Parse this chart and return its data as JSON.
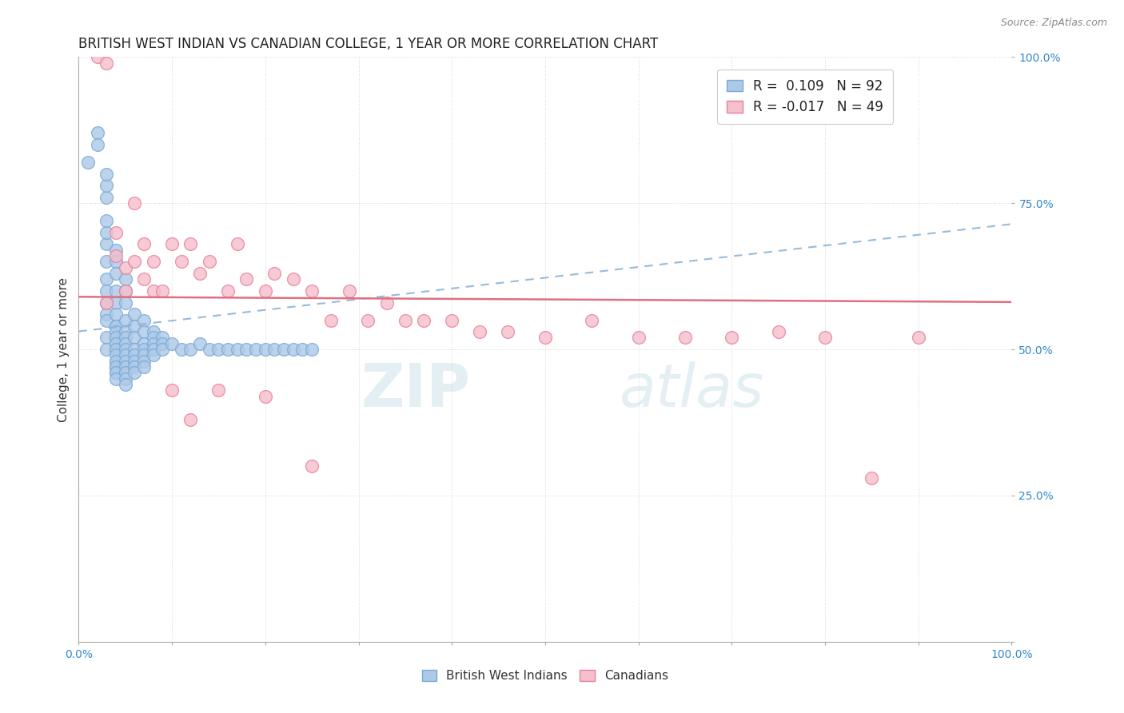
{
  "title": "BRITISH WEST INDIAN VS CANADIAN COLLEGE, 1 YEAR OR MORE CORRELATION CHART",
  "source": "Source: ZipAtlas.com",
  "ylabel": "College, 1 year or more",
  "watermark": "ZIPatlas",
  "xlim": [
    0.0,
    1.0
  ],
  "ylim": [
    0.0,
    1.0
  ],
  "xtick_positions": [
    0.0,
    0.1,
    0.2,
    0.3,
    0.4,
    0.5,
    0.6,
    0.7,
    0.8,
    0.9,
    1.0
  ],
  "ytick_positions": [
    0.0,
    0.25,
    0.5,
    0.75,
    1.0
  ],
  "blue_R": 0.109,
  "blue_N": 92,
  "pink_R": -0.017,
  "pink_N": 49,
  "blue_color": "#adc9e8",
  "blue_edge": "#7aaad4",
  "pink_color": "#f5bfcc",
  "pink_edge": "#e8809a",
  "blue_line_color": "#8ab4d8",
  "pink_line_color": "#e07080",
  "legend_blue_label": "R =  0.109   N = 92",
  "legend_pink_label": "R = -0.017   N = 49",
  "bottom_legend_blue": "British West Indians",
  "bottom_legend_pink": "Canadians",
  "title_fontsize": 12,
  "axis_fontsize": 11,
  "tick_fontsize": 10,
  "background_color": "#ffffff",
  "grid_color": "#cccccc",
  "blue_x": [
    0.01,
    0.02,
    0.02,
    0.03,
    0.03,
    0.03,
    0.03,
    0.03,
    0.03,
    0.03,
    0.03,
    0.03,
    0.03,
    0.03,
    0.03,
    0.03,
    0.03,
    0.04,
    0.04,
    0.04,
    0.04,
    0.04,
    0.04,
    0.04,
    0.04,
    0.04,
    0.04,
    0.04,
    0.04,
    0.04,
    0.04,
    0.04,
    0.04,
    0.04,
    0.04,
    0.04,
    0.04,
    0.04,
    0.04,
    0.05,
    0.05,
    0.05,
    0.05,
    0.05,
    0.05,
    0.05,
    0.05,
    0.05,
    0.05,
    0.05,
    0.05,
    0.05,
    0.05,
    0.06,
    0.06,
    0.06,
    0.06,
    0.06,
    0.06,
    0.06,
    0.06,
    0.07,
    0.07,
    0.07,
    0.07,
    0.07,
    0.07,
    0.07,
    0.08,
    0.08,
    0.08,
    0.08,
    0.08,
    0.09,
    0.09,
    0.09,
    0.1,
    0.11,
    0.12,
    0.13,
    0.14,
    0.15,
    0.16,
    0.17,
    0.18,
    0.19,
    0.2,
    0.21,
    0.22,
    0.23,
    0.24,
    0.25
  ],
  "blue_y": [
    0.82,
    0.87,
    0.85,
    0.76,
    0.78,
    0.8,
    0.68,
    0.7,
    0.72,
    0.65,
    0.62,
    0.6,
    0.58,
    0.56,
    0.55,
    0.52,
    0.5,
    0.67,
    0.65,
    0.63,
    0.6,
    0.58,
    0.56,
    0.54,
    0.52,
    0.5,
    0.48,
    0.47,
    0.46,
    0.54,
    0.53,
    0.52,
    0.51,
    0.5,
    0.49,
    0.48,
    0.47,
    0.46,
    0.45,
    0.62,
    0.6,
    0.58,
    0.55,
    0.53,
    0.52,
    0.51,
    0.5,
    0.49,
    0.48,
    0.47,
    0.46,
    0.45,
    0.44,
    0.56,
    0.54,
    0.52,
    0.5,
    0.49,
    0.48,
    0.47,
    0.46,
    0.55,
    0.53,
    0.51,
    0.5,
    0.49,
    0.48,
    0.47,
    0.53,
    0.52,
    0.51,
    0.5,
    0.49,
    0.52,
    0.51,
    0.5,
    0.51,
    0.5,
    0.5,
    0.51,
    0.5,
    0.5,
    0.5,
    0.5,
    0.5,
    0.5,
    0.5,
    0.5,
    0.5,
    0.5,
    0.5,
    0.5
  ],
  "pink_x": [
    0.02,
    0.03,
    0.03,
    0.04,
    0.04,
    0.05,
    0.05,
    0.06,
    0.06,
    0.07,
    0.07,
    0.08,
    0.08,
    0.09,
    0.1,
    0.11,
    0.12,
    0.13,
    0.14,
    0.16,
    0.17,
    0.18,
    0.2,
    0.21,
    0.23,
    0.25,
    0.27,
    0.29,
    0.31,
    0.33,
    0.35,
    0.37,
    0.4,
    0.43,
    0.46,
    0.5,
    0.55,
    0.6,
    0.65,
    0.7,
    0.75,
    0.8,
    0.85,
    0.9,
    0.1,
    0.12,
    0.15,
    0.2,
    0.25
  ],
  "pink_y": [
    1.0,
    0.99,
    0.58,
    0.7,
    0.66,
    0.64,
    0.6,
    0.75,
    0.65,
    0.68,
    0.62,
    0.65,
    0.6,
    0.6,
    0.68,
    0.65,
    0.68,
    0.63,
    0.65,
    0.6,
    0.68,
    0.62,
    0.6,
    0.63,
    0.62,
    0.6,
    0.55,
    0.6,
    0.55,
    0.58,
    0.55,
    0.55,
    0.55,
    0.53,
    0.53,
    0.52,
    0.55,
    0.52,
    0.52,
    0.52,
    0.53,
    0.52,
    0.28,
    0.52,
    0.43,
    0.38,
    0.43,
    0.42,
    0.3
  ]
}
